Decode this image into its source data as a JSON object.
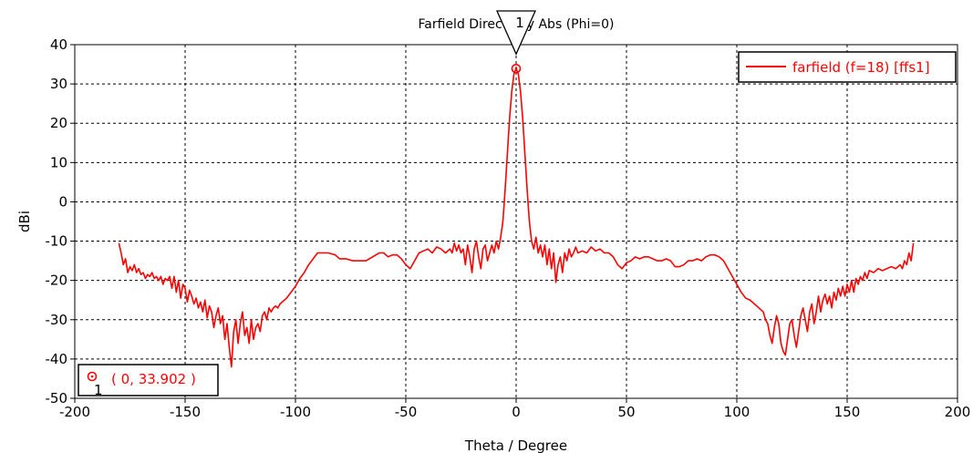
{
  "chart_data": {
    "type": "line",
    "title": "Farfield Directivity Abs (Phi=0)",
    "xlabel": "Theta / Degree",
    "ylabel": "dBi",
    "xlim": [
      -200,
      200
    ],
    "ylim": [
      -50,
      40
    ],
    "xticks": [
      -200,
      -150,
      -100,
      -50,
      0,
      50,
      100,
      150,
      200
    ],
    "yticks": [
      40,
      30,
      20,
      10,
      0,
      -10,
      -20,
      -30,
      -40,
      -50
    ],
    "grid": true,
    "legend_position": "top-right",
    "series": [
      {
        "name": "farfield (f=18) [ffs1]",
        "color": "#ff0000",
        "points": [
          [
            -180,
            -10.5
          ],
          [
            -179,
            -13
          ],
          [
            -178,
            -16
          ],
          [
            -177,
            -14.5
          ],
          [
            -176,
            -18
          ],
          [
            -175,
            -16.5
          ],
          [
            -174,
            -17.5
          ],
          [
            -173,
            -16
          ],
          [
            -172,
            -18
          ],
          [
            -171,
            -17
          ],
          [
            -170,
            -18.5
          ],
          [
            -169,
            -18
          ],
          [
            -168,
            -19.5
          ],
          [
            -167,
            -18.5
          ],
          [
            -166,
            -19
          ],
          [
            -165,
            -18
          ],
          [
            -164,
            -19.5
          ],
          [
            -163,
            -19
          ],
          [
            -162,
            -20
          ],
          [
            -161,
            -19
          ],
          [
            -160,
            -21
          ],
          [
            -159,
            -19.5
          ],
          [
            -158,
            -20
          ],
          [
            -157,
            -19
          ],
          [
            -156,
            -22
          ],
          [
            -155,
            -19
          ],
          [
            -154,
            -23
          ],
          [
            -153,
            -20
          ],
          [
            -152,
            -24.5
          ],
          [
            -151,
            -21
          ],
          [
            -150,
            -22
          ],
          [
            -149,
            -25.5
          ],
          [
            -148,
            -22.5
          ],
          [
            -147,
            -24
          ],
          [
            -146,
            -26
          ],
          [
            -145,
            -24.5
          ],
          [
            -144,
            -27
          ],
          [
            -143,
            -25.5
          ],
          [
            -142,
            -28
          ],
          [
            -141,
            -25
          ],
          [
            -140,
            -29.5
          ],
          [
            -139,
            -26.5
          ],
          [
            -138,
            -28
          ],
          [
            -137,
            -32
          ],
          [
            -136,
            -29
          ],
          [
            -135,
            -27
          ],
          [
            -134,
            -31
          ],
          [
            -133,
            -29
          ],
          [
            -132,
            -35
          ],
          [
            -131,
            -31
          ],
          [
            -130,
            -37
          ],
          [
            -129,
            -42
          ],
          [
            -128,
            -33
          ],
          [
            -127,
            -30
          ],
          [
            -126,
            -36
          ],
          [
            -125,
            -31
          ],
          [
            -124,
            -28
          ],
          [
            -123,
            -34
          ],
          [
            -122,
            -32
          ],
          [
            -121,
            -36
          ],
          [
            -120,
            -30
          ],
          [
            -119,
            -35
          ],
          [
            -118,
            -32
          ],
          [
            -117,
            -31
          ],
          [
            -116,
            -33
          ],
          [
            -115,
            -29
          ],
          [
            -114,
            -28
          ],
          [
            -113,
            -30
          ],
          [
            -112,
            -27
          ],
          [
            -111,
            -28
          ],
          [
            -110,
            -27
          ],
          [
            -109,
            -26.5
          ],
          [
            -108,
            -27
          ],
          [
            -107,
            -26
          ],
          [
            -106,
            -25.5
          ],
          [
            -104,
            -24.5
          ],
          [
            -102,
            -23
          ],
          [
            -100,
            -21.5
          ],
          [
            -98,
            -19.5
          ],
          [
            -96,
            -18
          ],
          [
            -94,
            -16
          ],
          [
            -92,
            -14.5
          ],
          [
            -90,
            -13
          ],
          [
            -88,
            -13
          ],
          [
            -85,
            -13
          ],
          [
            -82,
            -13.5
          ],
          [
            -80,
            -14.5
          ],
          [
            -77,
            -14.5
          ],
          [
            -74,
            -15
          ],
          [
            -71,
            -15
          ],
          [
            -68,
            -15
          ],
          [
            -65,
            -14
          ],
          [
            -62,
            -13
          ],
          [
            -60,
            -13
          ],
          [
            -58,
            -14
          ],
          [
            -56,
            -13.5
          ],
          [
            -54,
            -13.5
          ],
          [
            -52,
            -14.5
          ],
          [
            -50,
            -16
          ],
          [
            -48,
            -17
          ],
          [
            -46,
            -15
          ],
          [
            -44,
            -13
          ],
          [
            -42,
            -12.5
          ],
          [
            -40,
            -12
          ],
          [
            -38,
            -13
          ],
          [
            -36,
            -11.5
          ],
          [
            -34,
            -12
          ],
          [
            -32,
            -13
          ],
          [
            -30,
            -12
          ],
          [
            -29,
            -13
          ],
          [
            -28,
            -10.5
          ],
          [
            -27,
            -12.5
          ],
          [
            -26,
            -11
          ],
          [
            -25,
            -13
          ],
          [
            -24,
            -12
          ],
          [
            -23,
            -16
          ],
          [
            -22,
            -11
          ],
          [
            -21,
            -14
          ],
          [
            -20,
            -18
          ],
          [
            -19,
            -12
          ],
          [
            -18,
            -10
          ],
          [
            -17,
            -14
          ],
          [
            -16,
            -17
          ],
          [
            -15,
            -12
          ],
          [
            -14,
            -11
          ],
          [
            -13,
            -15
          ],
          [
            -12,
            -13
          ],
          [
            -11,
            -11
          ],
          [
            -10,
            -13
          ],
          [
            -9,
            -10
          ],
          [
            -8,
            -12
          ],
          [
            -7,
            -9
          ],
          [
            -6,
            -5
          ],
          [
            -5,
            3
          ],
          [
            -4,
            12
          ],
          [
            -3,
            21
          ],
          [
            -2,
            28
          ],
          [
            -1,
            32.5
          ],
          [
            0,
            33.902
          ],
          [
            1,
            32.5
          ],
          [
            2,
            28
          ],
          [
            3,
            21
          ],
          [
            4,
            12
          ],
          [
            5,
            3
          ],
          [
            6,
            -5
          ],
          [
            7,
            -10
          ],
          [
            8,
            -12
          ],
          [
            9,
            -9
          ],
          [
            10,
            -13
          ],
          [
            11,
            -11
          ],
          [
            12,
            -14
          ],
          [
            13,
            -11
          ],
          [
            14,
            -16
          ],
          [
            15,
            -12
          ],
          [
            16,
            -17
          ],
          [
            17,
            -13
          ],
          [
            18,
            -20.5
          ],
          [
            19,
            -16
          ],
          [
            20,
            -14
          ],
          [
            21,
            -18
          ],
          [
            22,
            -13
          ],
          [
            23,
            -15
          ],
          [
            24,
            -12
          ],
          [
            25,
            -14
          ],
          [
            26,
            -13
          ],
          [
            27,
            -11.5
          ],
          [
            28,
            -13
          ],
          [
            30,
            -12.5
          ],
          [
            32,
            -13
          ],
          [
            34,
            -11.5
          ],
          [
            36,
            -12.5
          ],
          [
            38,
            -12
          ],
          [
            40,
            -13
          ],
          [
            42,
            -13
          ],
          [
            44,
            -14
          ],
          [
            46,
            -16
          ],
          [
            48,
            -17
          ],
          [
            50,
            -15.5
          ],
          [
            52,
            -15
          ],
          [
            54,
            -14
          ],
          [
            56,
            -14.5
          ],
          [
            58,
            -14
          ],
          [
            60,
            -14
          ],
          [
            62,
            -14.5
          ],
          [
            64,
            -15
          ],
          [
            66,
            -15
          ],
          [
            68,
            -14.5
          ],
          [
            70,
            -15
          ],
          [
            72,
            -16.5
          ],
          [
            74,
            -16.5
          ],
          [
            76,
            -16
          ],
          [
            78,
            -15
          ],
          [
            80,
            -15
          ],
          [
            82,
            -14.5
          ],
          [
            84,
            -15
          ],
          [
            86,
            -14
          ],
          [
            88,
            -13.5
          ],
          [
            90,
            -13.5
          ],
          [
            92,
            -14
          ],
          [
            94,
            -15
          ],
          [
            96,
            -17
          ],
          [
            98,
            -19
          ],
          [
            100,
            -21
          ],
          [
            102,
            -23
          ],
          [
            104,
            -24.5
          ],
          [
            106,
            -25
          ],
          [
            108,
            -26
          ],
          [
            110,
            -27
          ],
          [
            112,
            -28
          ],
          [
            113,
            -30
          ],
          [
            114,
            -31
          ],
          [
            115,
            -34
          ],
          [
            116,
            -36
          ],
          [
            117,
            -32
          ],
          [
            118,
            -29
          ],
          [
            119,
            -31
          ],
          [
            120,
            -36
          ],
          [
            121,
            -38
          ],
          [
            122,
            -39
          ],
          [
            123,
            -35
          ],
          [
            124,
            -31
          ],
          [
            125,
            -30
          ],
          [
            126,
            -34
          ],
          [
            127,
            -37
          ],
          [
            128,
            -33
          ],
          [
            129,
            -29
          ],
          [
            130,
            -27
          ],
          [
            131,
            -30
          ],
          [
            132,
            -33
          ],
          [
            133,
            -28
          ],
          [
            134,
            -26
          ],
          [
            135,
            -31
          ],
          [
            136,
            -28
          ],
          [
            137,
            -24
          ],
          [
            138,
            -28
          ],
          [
            139,
            -25
          ],
          [
            140,
            -23.5
          ],
          [
            141,
            -26
          ],
          [
            142,
            -24
          ],
          [
            143,
            -27
          ],
          [
            144,
            -23
          ],
          [
            145,
            -25
          ],
          [
            146,
            -22
          ],
          [
            147,
            -24
          ],
          [
            148,
            -21.5
          ],
          [
            149,
            -24
          ],
          [
            150,
            -21
          ],
          [
            151,
            -23
          ],
          [
            152,
            -20
          ],
          [
            153,
            -23
          ],
          [
            154,
            -19.5
          ],
          [
            155,
            -21
          ],
          [
            156,
            -19
          ],
          [
            157,
            -20
          ],
          [
            158,
            -18
          ],
          [
            159,
            -19.5
          ],
          [
            160,
            -17.5
          ],
          [
            162,
            -18
          ],
          [
            164,
            -17
          ],
          [
            166,
            -17.5
          ],
          [
            168,
            -17
          ],
          [
            170,
            -16.5
          ],
          [
            172,
            -17
          ],
          [
            174,
            -16
          ],
          [
            175,
            -17
          ],
          [
            176,
            -15
          ],
          [
            177,
            -16
          ],
          [
            178,
            -13
          ],
          [
            179,
            -15
          ],
          [
            180,
            -10.5
          ]
        ]
      }
    ],
    "marker": {
      "id": "1",
      "x": 0,
      "y": 33.902,
      "label": "( 0, 33.902 )",
      "color": "#ff0000",
      "position": "bottom-left"
    }
  }
}
